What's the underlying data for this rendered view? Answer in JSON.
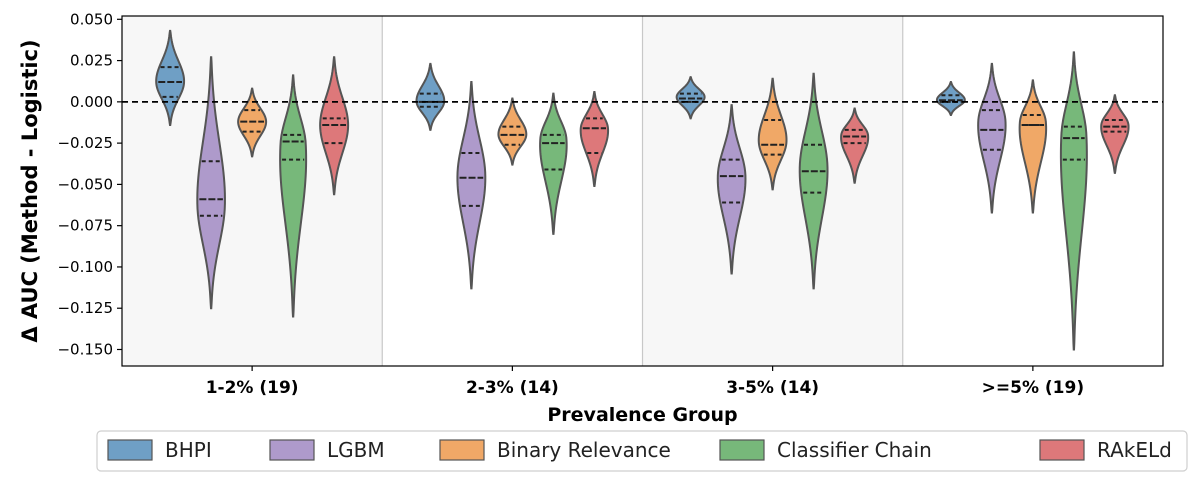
{
  "chart_data": {
    "type": "violin",
    "title": "",
    "xlabel": "Prevalence Group",
    "ylabel": "Δ AUC (Method - Logistic)",
    "ylim": [
      -0.16,
      0.052
    ],
    "yticks": [
      0.05,
      0.025,
      0.0,
      -0.025,
      -0.05,
      -0.075,
      -0.1,
      -0.125,
      -0.15
    ],
    "ytick_labels": [
      "0.050",
      "0.025",
      "0.000",
      "−0.025",
      "−0.050",
      "−0.075",
      "−0.100",
      "−0.125",
      "−0.150"
    ],
    "reference_line": 0.0,
    "categories": [
      "1-2% (19)",
      "2-3% (14)",
      "3-5% (14)",
      ">=5% (19)"
    ],
    "shaded_groups": [
      0,
      2
    ],
    "legend_position": "bottom",
    "series": [
      {
        "name": "BHPI",
        "color": "#5f95bf",
        "groups": [
          {
            "min": -0.014,
            "max": 0.043,
            "q1": 0.003,
            "median": 0.012,
            "q3": 0.021,
            "mode": 0.012
          },
          {
            "min": -0.017,
            "max": 0.023,
            "q1": -0.003,
            "median": 0.0,
            "q3": 0.005,
            "mode": 0.0
          },
          {
            "min": -0.01,
            "max": 0.015,
            "q1": 0.0,
            "median": 0.002,
            "q3": 0.005,
            "mode": 0.003
          },
          {
            "min": -0.008,
            "max": 0.012,
            "q1": 0.0,
            "median": 0.001,
            "q3": 0.004,
            "mode": 0.001
          }
        ]
      },
      {
        "name": "LGBM",
        "color": "#a58fc5",
        "groups": [
          {
            "min": -0.125,
            "max": 0.027,
            "q1": -0.069,
            "median": -0.059,
            "q3": -0.036,
            "mode": -0.062
          },
          {
            "min": -0.113,
            "max": 0.012,
            "q1": -0.063,
            "median": -0.046,
            "q3": -0.031,
            "mode": -0.045
          },
          {
            "min": -0.104,
            "max": -0.002,
            "q1": -0.061,
            "median": -0.045,
            "q3": -0.035,
            "mode": -0.045
          },
          {
            "min": -0.067,
            "max": 0.023,
            "q1": -0.029,
            "median": -0.017,
            "q3": -0.005,
            "mode": -0.012
          }
        ]
      },
      {
        "name": "Binary Relevance",
        "color": "#ee9f57",
        "groups": [
          {
            "min": -0.033,
            "max": 0.008,
            "q1": -0.018,
            "median": -0.012,
            "q3": -0.005,
            "mode": -0.012
          },
          {
            "min": -0.038,
            "max": 0.002,
            "q1": -0.026,
            "median": -0.02,
            "q3": -0.015,
            "mode": -0.02
          },
          {
            "min": -0.053,
            "max": 0.014,
            "q1": -0.032,
            "median": -0.026,
            "q3": -0.011,
            "mode": -0.024
          },
          {
            "min": -0.067,
            "max": 0.013,
            "q1": -0.014,
            "median": -0.014,
            "q3": -0.008,
            "mode": -0.012
          }
        ]
      },
      {
        "name": "Classifier Chain",
        "color": "#68b06b",
        "groups": [
          {
            "min": -0.13,
            "max": 0.016,
            "q1": -0.035,
            "median": -0.024,
            "q3": -0.02,
            "mode": -0.025
          },
          {
            "min": -0.08,
            "max": 0.005,
            "q1": -0.041,
            "median": -0.025,
            "q3": -0.02,
            "mode": -0.022
          },
          {
            "min": -0.113,
            "max": 0.017,
            "q1": -0.055,
            "median": -0.042,
            "q3": -0.026,
            "mode": -0.04
          },
          {
            "min": -0.15,
            "max": 0.03,
            "q1": -0.035,
            "median": -0.022,
            "q3": -0.015,
            "mode": -0.02
          }
        ]
      },
      {
        "name": "RAkELd",
        "color": "#d9696b",
        "groups": [
          {
            "min": -0.056,
            "max": 0.027,
            "q1": -0.025,
            "median": -0.014,
            "q3": -0.01,
            "mode": -0.014
          },
          {
            "min": -0.051,
            "max": 0.006,
            "q1": -0.031,
            "median": -0.016,
            "q3": -0.01,
            "mode": -0.016
          },
          {
            "min": -0.049,
            "max": -0.004,
            "q1": -0.025,
            "median": -0.021,
            "q3": -0.017,
            "mode": -0.02
          },
          {
            "min": -0.043,
            "max": 0.004,
            "q1": -0.018,
            "median": -0.015,
            "q3": -0.011,
            "mode": -0.014
          }
        ]
      }
    ]
  }
}
